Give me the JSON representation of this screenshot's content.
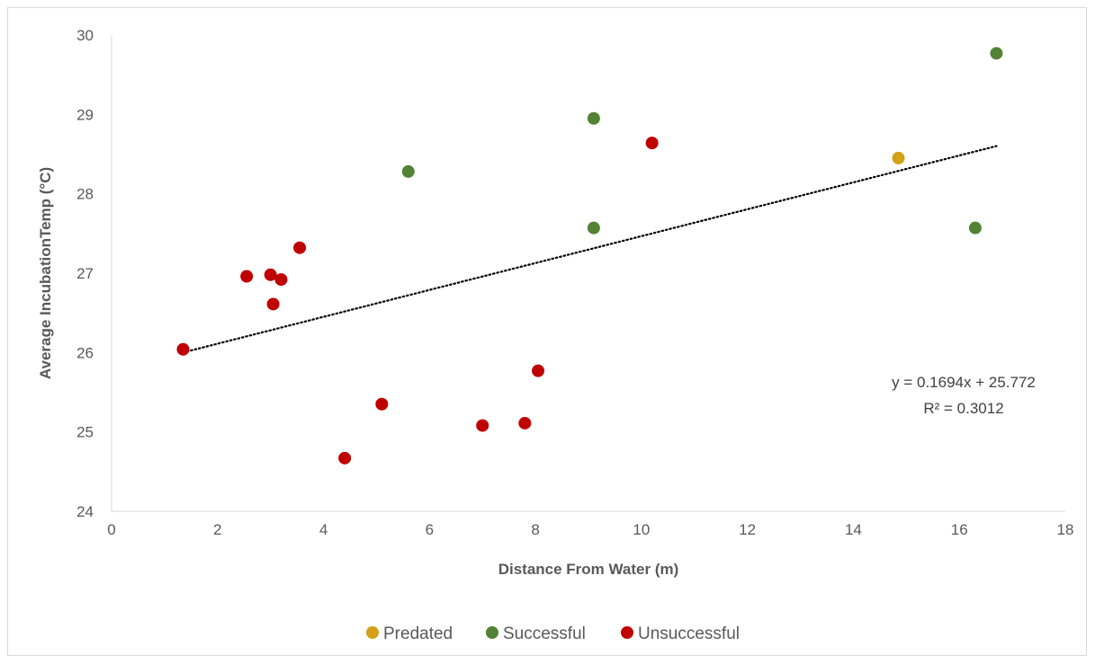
{
  "chart_data": {
    "type": "scatter",
    "title": "",
    "xlabel": "Distance From Water (m)",
    "ylabel": "Average IncubationTemp (°C)",
    "xlim": [
      0,
      18
    ],
    "ylim": [
      24,
      30
    ],
    "x_ticks": [
      "0",
      "2",
      "4",
      "6",
      "8",
      "10",
      "12",
      "14",
      "16",
      "18"
    ],
    "y_ticks": [
      "24",
      "25",
      "26",
      "27",
      "28",
      "29",
      "30"
    ],
    "grid": false,
    "legend_position": "bottom",
    "series": [
      {
        "name": "Predated",
        "color": "#D4A017",
        "points": [
          [
            14.85,
            28.45
          ]
        ]
      },
      {
        "name": "Successful",
        "color": "#548235",
        "points": [
          [
            5.6,
            28.28
          ],
          [
            9.1,
            28.95
          ],
          [
            9.1,
            27.57
          ],
          [
            16.3,
            27.57
          ],
          [
            16.7,
            29.77
          ]
        ]
      },
      {
        "name": "Unsuccessful",
        "color": "#C00000",
        "points": [
          [
            1.35,
            26.04
          ],
          [
            2.55,
            26.96
          ],
          [
            3.0,
            26.98
          ],
          [
            3.05,
            26.61
          ],
          [
            3.2,
            26.92
          ],
          [
            3.55,
            27.32
          ],
          [
            4.4,
            24.67
          ],
          [
            5.1,
            25.35
          ],
          [
            7.0,
            25.08
          ],
          [
            7.8,
            25.11
          ],
          [
            8.05,
            25.77
          ],
          [
            10.2,
            28.64
          ]
        ]
      }
    ],
    "trendline": {
      "type": "linear",
      "slope": 0.1694,
      "intercept": 25.772,
      "x_range": [
        1.35,
        16.7
      ],
      "style": "dotted",
      "color": "#000000",
      "equation_label": "y = 0.1694x + 25.772",
      "r2_label": "R² = 0.3012"
    }
  }
}
